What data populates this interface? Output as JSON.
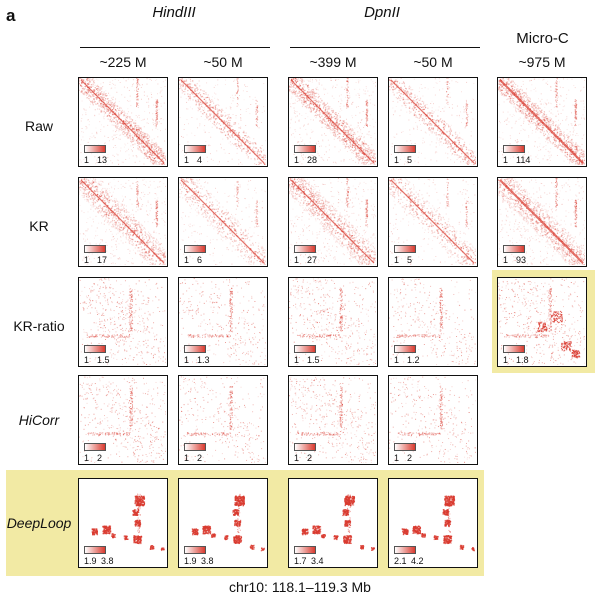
{
  "panel_letter": "a",
  "groups": [
    {
      "title": "HindIII",
      "italic": true
    },
    {
      "title": "DpnII",
      "italic": true
    },
    {
      "title": "Micro-C",
      "italic": false
    }
  ],
  "columns": [
    "~225 M",
    "~50 M",
    "~399 M",
    "~50 M",
    "~975 M"
  ],
  "rows": [
    {
      "label": "Raw",
      "italic": false
    },
    {
      "label": "KR",
      "italic": false
    },
    {
      "label": "KR-ratio",
      "italic": false
    },
    {
      "label": "HiCorr",
      "italic": true
    },
    {
      "label": "DeepLoop",
      "italic": true
    }
  ],
  "scales": [
    [
      [
        "1",
        "13"
      ],
      [
        "1",
        "4"
      ],
      [
        "1",
        "28"
      ],
      [
        "1",
        "5"
      ],
      [
        "1",
        "114"
      ]
    ],
    [
      [
        "1",
        "17"
      ],
      [
        "1",
        "6"
      ],
      [
        "1",
        "27"
      ],
      [
        "1",
        "5"
      ],
      [
        "1",
        "93"
      ]
    ],
    [
      [
        "1",
        "1.5"
      ],
      [
        "1",
        "1.3"
      ],
      [
        "1",
        "1.5"
      ],
      [
        "1",
        "1.2"
      ],
      [
        "1",
        "1.8"
      ]
    ],
    [
      [
        "1",
        "2"
      ],
      [
        "1",
        "2"
      ],
      [
        "1",
        "2"
      ],
      [
        "1",
        "2"
      ],
      null
    ],
    [
      [
        "1.9",
        "3.8"
      ],
      [
        "1.9",
        "3.8"
      ],
      [
        "1.7",
        "3.4"
      ],
      [
        "2.1",
        "4.2"
      ],
      null
    ]
  ],
  "colors": {
    "heat": "#d93a2f",
    "highlight": "#f2eaa4",
    "frame": "#111111"
  },
  "footer": "chr10: 118.1–119.3 Mb"
}
